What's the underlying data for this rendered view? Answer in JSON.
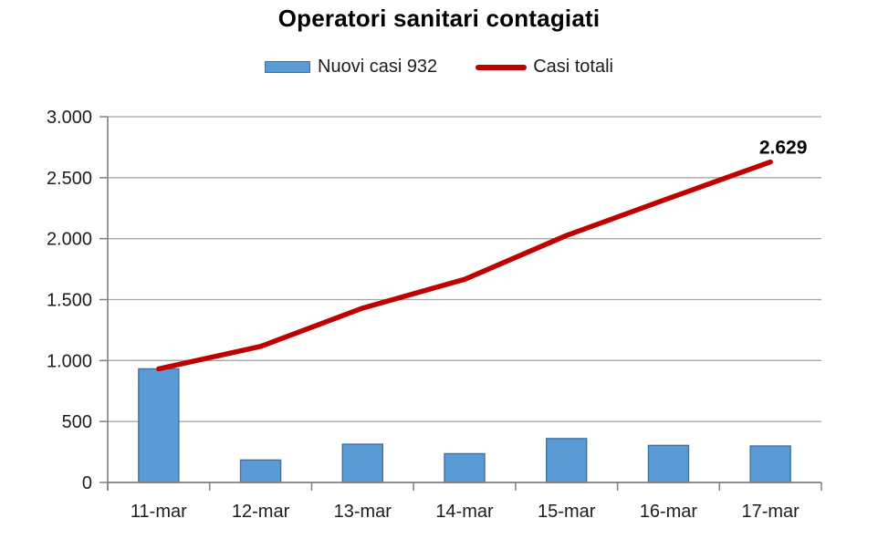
{
  "chart_data": {
    "type": "bar+line combo",
    "title": "Operatori sanitari contagiati",
    "categories": [
      "11-mar",
      "12-mar",
      "13-mar",
      "14-mar",
      "15-mar",
      "16-mar",
      "17-mar"
    ],
    "series": [
      {
        "name": "Nuovi casi 932",
        "type": "bar",
        "color": "#5B9BD5",
        "border_color": "#41719C",
        "values": [
          932,
          184,
          314,
          236,
          360,
          304,
          299
        ]
      },
      {
        "name": "Casi totali",
        "type": "line",
        "color": "#C00000",
        "values": [
          932,
          1116,
          1430,
          1666,
          2026,
          2330,
          2629
        ]
      }
    ],
    "y_axis": {
      "min": 0,
      "max": 3000,
      "tick_values": [
        0,
        500,
        1000,
        1500,
        2000,
        2500,
        3000
      ],
      "tick_labels": [
        "0",
        "500",
        "1.000",
        "1.500",
        "2.000",
        "2.500",
        "3.000"
      ]
    },
    "x_axis": {
      "tick_labels": [
        "11-mar",
        "12-mar",
        "13-mar",
        "14-mar",
        "15-mar",
        "16-mar",
        "17-mar"
      ]
    },
    "grid": true,
    "legend_position": "top",
    "annotation": {
      "text": "2.629",
      "series": "Casi totali",
      "category": "17-mar"
    },
    "colors": {
      "bar_fill": "#5B9BD5",
      "bar_border": "#41719C",
      "line": "#C00000",
      "gridline": "#A6A6A6",
      "axis_line": "#808080",
      "label_text": "#1d1d1d",
      "title_text": "#000000"
    }
  }
}
